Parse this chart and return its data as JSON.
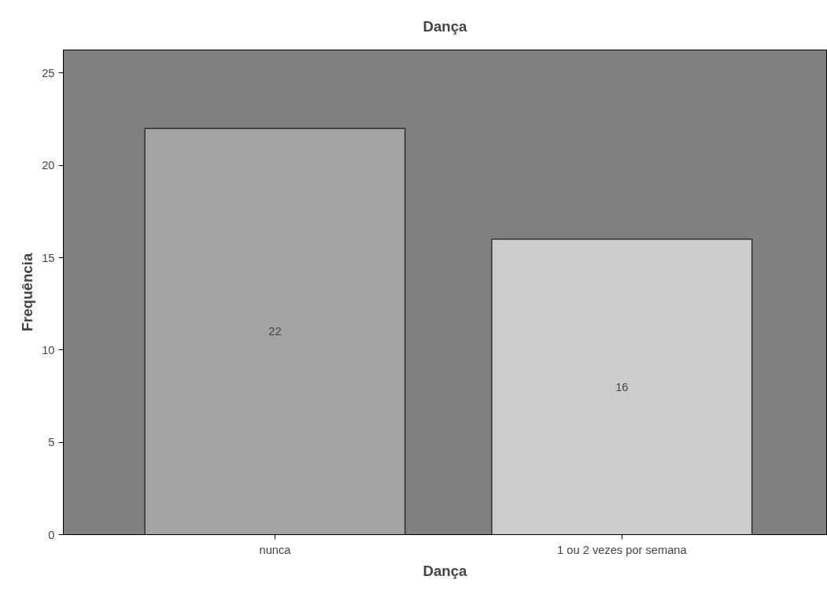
{
  "chart_data": {
    "type": "bar",
    "title": "Dança",
    "xlabel": "Dança",
    "ylabel": "Frequência",
    "categories": [
      "nunca",
      "1 ou 2 vezes por semana"
    ],
    "values": [
      22,
      16
    ],
    "colors": [
      "#a3a3a3",
      "#cccccc"
    ],
    "ylim": [
      0,
      26.25
    ],
    "yticks": [
      0,
      5,
      10,
      15,
      20,
      25
    ],
    "grid": false,
    "data_labels": true
  }
}
